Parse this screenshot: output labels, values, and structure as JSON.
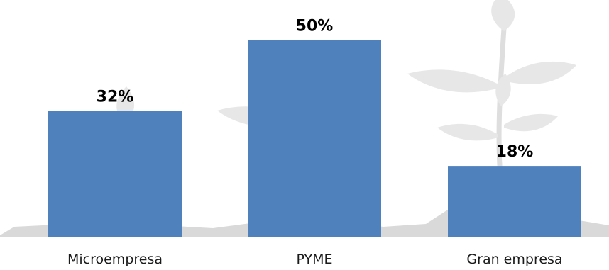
{
  "chart_data": {
    "type": "bar",
    "categories": [
      "Microempresa",
      "PYME",
      "Gran empresa"
    ],
    "values": [
      32,
      50,
      18
    ],
    "value_labels": [
      "32%",
      "50%",
      "18%"
    ],
    "ylim": [
      0,
      100
    ],
    "grid": false,
    "legend": "none",
    "colors": {
      "bar": "#4f81bd",
      "background_illustration": "#e7e7e7"
    },
    "background_illustration": "growing-plant-seedlings"
  }
}
